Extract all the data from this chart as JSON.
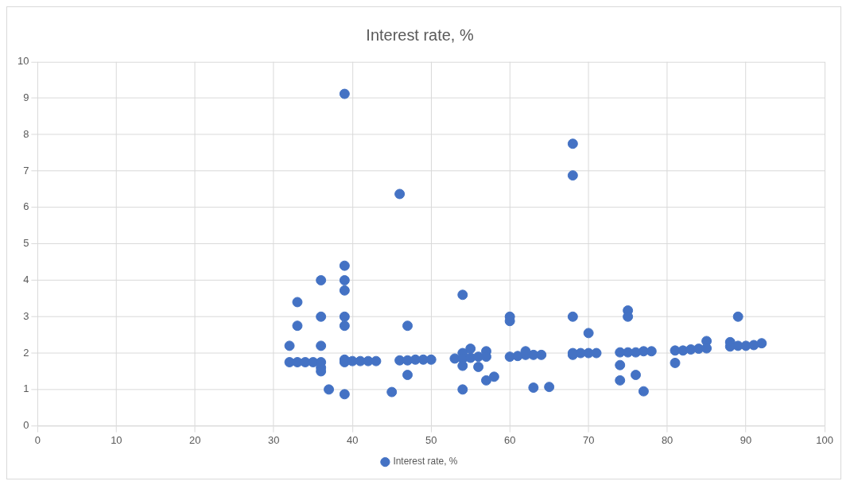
{
  "chart_data": {
    "type": "scatter",
    "title": "Interest rate, %",
    "series": [
      {
        "name": "Interest rate, %",
        "color": "#4472c4",
        "x": [
          32,
          32,
          33,
          33,
          33,
          34,
          35,
          36,
          36,
          36,
          36,
          36,
          36,
          37,
          39,
          39,
          39,
          39,
          39,
          39,
          39,
          39,
          39,
          40,
          41,
          42,
          43,
          45,
          46,
          46,
          47,
          47,
          47,
          48,
          49,
          50,
          53,
          54,
          54,
          54,
          54,
          54,
          55,
          55,
          56,
          56,
          57,
          57,
          57,
          58,
          60,
          60,
          60,
          61,
          62,
          62,
          63,
          63,
          64,
          65,
          68,
          68,
          68,
          68,
          68,
          69,
          70,
          70,
          71,
          74,
          74,
          74,
          75,
          75,
          75,
          76,
          76,
          77,
          77,
          78,
          81,
          81,
          82,
          83,
          84,
          85,
          85,
          88,
          88,
          89,
          89,
          90,
          91,
          92
        ],
        "values": [
          2.2,
          1.75,
          3.4,
          2.75,
          1.75,
          1.75,
          1.75,
          4.0,
          3.0,
          2.2,
          1.75,
          1.6,
          1.5,
          1.0,
          9.12,
          4.4,
          4.0,
          3.72,
          3.0,
          2.75,
          1.82,
          1.75,
          0.87,
          1.78,
          1.78,
          1.78,
          1.78,
          0.93,
          6.37,
          1.8,
          2.75,
          1.8,
          1.4,
          1.82,
          1.82,
          1.82,
          1.85,
          3.6,
          2.0,
          1.85,
          1.65,
          1.0,
          2.12,
          1.87,
          1.9,
          1.62,
          2.05,
          1.9,
          1.25,
          1.35,
          3.0,
          2.88,
          1.9,
          1.92,
          2.05,
          1.95,
          1.95,
          1.05,
          1.95,
          1.07,
          7.75,
          6.88,
          3.0,
          2.0,
          1.95,
          2.0,
          2.55,
          2.0,
          2.0,
          2.02,
          1.67,
          1.25,
          3.17,
          3.0,
          2.02,
          2.02,
          1.4,
          2.05,
          0.95,
          2.05,
          2.07,
          1.73,
          2.07,
          2.1,
          2.12,
          2.33,
          2.13,
          2.3,
          2.18,
          3.0,
          2.2,
          2.2,
          2.22,
          2.27
        ]
      }
    ],
    "xlim": [
      0,
      100
    ],
    "xticks": [
      0,
      10,
      20,
      30,
      40,
      50,
      60,
      70,
      80,
      90,
      100
    ],
    "ylim": [
      0,
      10
    ],
    "yticks": [
      0,
      1,
      2,
      3,
      4,
      5,
      6,
      7,
      8,
      9,
      10
    ],
    "grid": true,
    "legend": "bottom",
    "marker": "circle"
  }
}
